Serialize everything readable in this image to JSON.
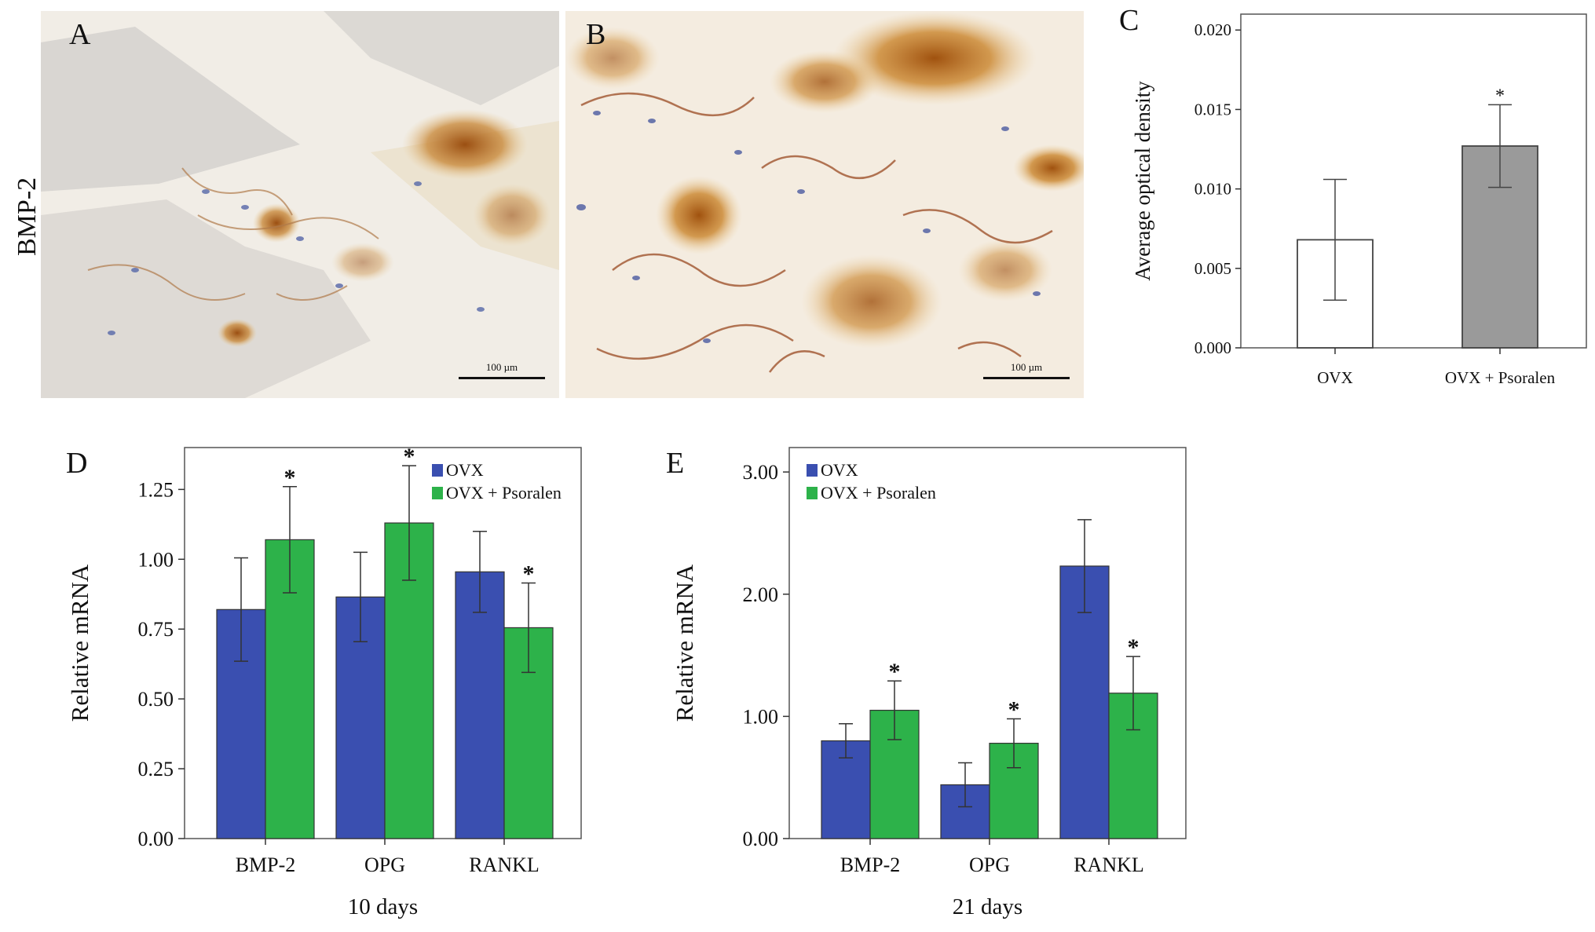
{
  "row_label": "BMP-2",
  "micrographs": [
    {
      "letter": "A",
      "scale_bar": "100 µm"
    },
    {
      "letter": "B",
      "scale_bar": "100 µm"
    }
  ],
  "colors": {
    "ovx": "#3a4fb0",
    "psoralen": "#2db24a",
    "ovx_c": "#ffffff",
    "psoralen_c": "#9a9a9a",
    "stain": "#b5651d"
  },
  "chart_data": [
    {
      "letter": "C",
      "type": "bar",
      "ylabel": "Average optical density",
      "categories": [
        "OVX",
        "OVX + Psoralen"
      ],
      "values": [
        0.0068,
        0.0127
      ],
      "errors": [
        0.0038,
        0.0026
      ],
      "significance": [
        "",
        "*"
      ],
      "ylim": [
        0,
        0.021
      ],
      "yticks": [
        "0.000",
        "0.005",
        "0.010",
        "0.015",
        "0.020"
      ],
      "ytick_values": [
        0,
        0.005,
        0.01,
        0.015,
        0.02
      ],
      "grid": false
    },
    {
      "letter": "D",
      "type": "bar",
      "ylabel": "Relative mRNA",
      "xlabel": "10 days",
      "categories": [
        "BMP-2",
        "OPG",
        "RANKL"
      ],
      "legend_position": "top-right",
      "ylim": [
        0,
        1.4
      ],
      "yticks": [
        "0.00",
        "0.25",
        "0.50",
        "0.75",
        "1.00",
        "1.25"
      ],
      "ytick_values": [
        0,
        0.25,
        0.5,
        0.75,
        1.0,
        1.25
      ],
      "series": [
        {
          "name": "OVX",
          "values": [
            0.82,
            0.865,
            0.955
          ],
          "errors": [
            0.185,
            0.16,
            0.145
          ],
          "significance": [
            "",
            "",
            ""
          ]
        },
        {
          "name": "OVX + Psoralen",
          "values": [
            1.07,
            1.13,
            0.755
          ],
          "errors": [
            0.19,
            0.205,
            0.16
          ],
          "significance": [
            "*",
            "*",
            "*"
          ]
        }
      ],
      "grid": false
    },
    {
      "letter": "E",
      "type": "bar",
      "ylabel": "Relative mRNA",
      "xlabel": "21 days",
      "categories": [
        "BMP-2",
        "OPG",
        "RANKL"
      ],
      "legend_position": "top-left",
      "ylim": [
        0,
        3.2
      ],
      "yticks": [
        "0.00",
        "1.00",
        "2.00",
        "3.00"
      ],
      "ytick_values": [
        0,
        1,
        2,
        3
      ],
      "series": [
        {
          "name": "OVX",
          "values": [
            0.8,
            0.44,
            2.23
          ],
          "errors": [
            0.14,
            0.18,
            0.38
          ],
          "significance": [
            "",
            "",
            ""
          ]
        },
        {
          "name": "OVX + Psoralen",
          "values": [
            1.05,
            0.78,
            1.19
          ],
          "errors": [
            0.24,
            0.2,
            0.3
          ],
          "significance": [
            "*",
            "*",
            "*"
          ]
        }
      ],
      "grid": false
    }
  ]
}
